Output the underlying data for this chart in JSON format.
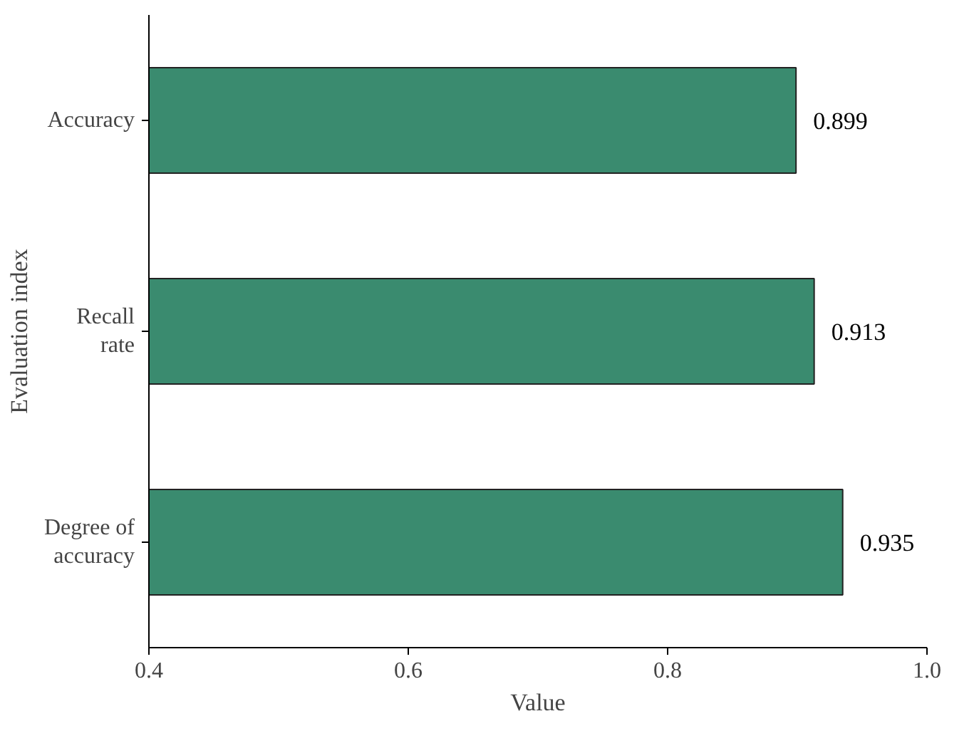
{
  "chart_data": {
    "type": "bar",
    "orientation": "horizontal",
    "xlabel": "Value",
    "ylabel": "Evaluation index",
    "categories": [
      "Accuracy",
      "Recall rate",
      "Degree of accuracy"
    ],
    "values": [
      0.899,
      0.913,
      0.935
    ],
    "color": "#3a8b6f",
    "xlim": [
      0.4,
      1.0
    ],
    "xticks": [
      0.4,
      0.6,
      0.8,
      {
        "value": 1,
        "label": "1.0"
      }
    ],
    "data_labels": true
  }
}
